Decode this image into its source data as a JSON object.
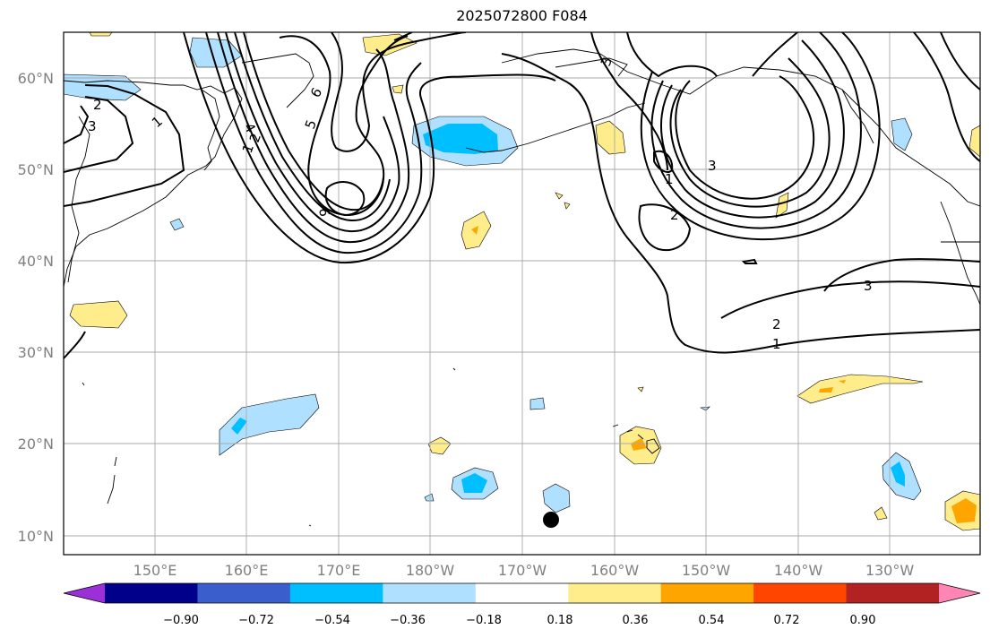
{
  "title": "2025072800 F084",
  "map": {
    "lat_labels": [
      "60°N",
      "50°N",
      "40°N",
      "30°N",
      "20°N",
      "10°N"
    ],
    "lon_labels": [
      "150°E",
      "160°E",
      "170°E",
      "180°W",
      "170°W",
      "160°W",
      "150°W",
      "140°W",
      "130°W"
    ],
    "contour_labels": [
      "1",
      "2",
      "3",
      "4",
      "5",
      "6",
      "1",
      "2",
      "3",
      "1",
      "2",
      "3",
      "1",
      "2",
      "3"
    ],
    "grid": true
  },
  "colorbar": {
    "tick_labels": [
      "−0.90",
      "−0.72",
      "−0.54",
      "−0.36",
      "−0.18",
      "0.18",
      "0.36",
      "0.54",
      "0.72",
      "0.90"
    ],
    "colors": [
      "#9b30d9",
      "#00008b",
      "#3a5fcd",
      "#00bfff",
      "#b0e0ff",
      "#ffffff",
      "#ffec8b",
      "#ffa500",
      "#ff4500",
      "#b22222",
      "#ff86b4"
    ]
  },
  "marker": {
    "color": "#000000",
    "label": ""
  }
}
